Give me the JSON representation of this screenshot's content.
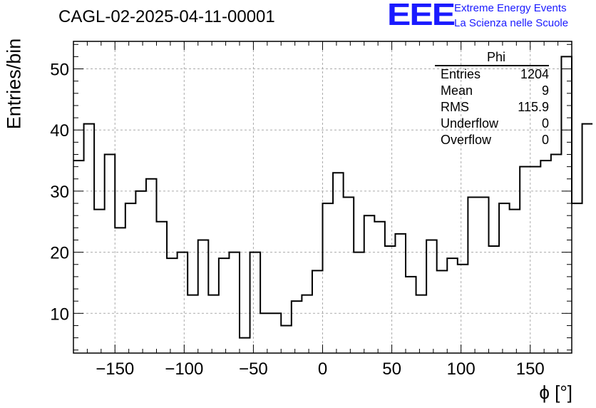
{
  "title": "CAGL-02-2025-04-11-00001",
  "logo": {
    "mark": "EEE",
    "line1": "Extreme Energy Events",
    "line2": "La Scienza nelle Scuole",
    "color": "#1a1aff"
  },
  "stats": {
    "name": "Phi",
    "rows": [
      {
        "label": "Entries",
        "value": "1204"
      },
      {
        "label": "Mean",
        "value": "9"
      },
      {
        "label": "RMS",
        "value": "115.9"
      },
      {
        "label": "Underflow",
        "value": "0"
      },
      {
        "label": "Overflow",
        "value": "0"
      }
    ]
  },
  "chart_data": {
    "type": "histogram",
    "title": "CAGL-02-2025-04-11-00001",
    "xlabel": "ϕ [°]",
    "ylabel": "Entries/bin",
    "xlim": [
      -180,
      180
    ],
    "ylim": [
      3.5,
      54.5
    ],
    "bin_width": 7.5,
    "x_ticks": [
      -150,
      -100,
      -50,
      0,
      50,
      100,
      150
    ],
    "y_ticks": [
      10,
      20,
      30,
      40,
      50
    ],
    "grid": true,
    "values": [
      35,
      41,
      27,
      36,
      24,
      28,
      30,
      32,
      25,
      19,
      20,
      13,
      22,
      13,
      19,
      20,
      6,
      20,
      10,
      10,
      8,
      12,
      13,
      17,
      28,
      33,
      29,
      20,
      26,
      25,
      21,
      23,
      16,
      13,
      22,
      17,
      19,
      18,
      29,
      29,
      21,
      28,
      27,
      34,
      34,
      35,
      36,
      52,
      28,
      41
    ]
  }
}
